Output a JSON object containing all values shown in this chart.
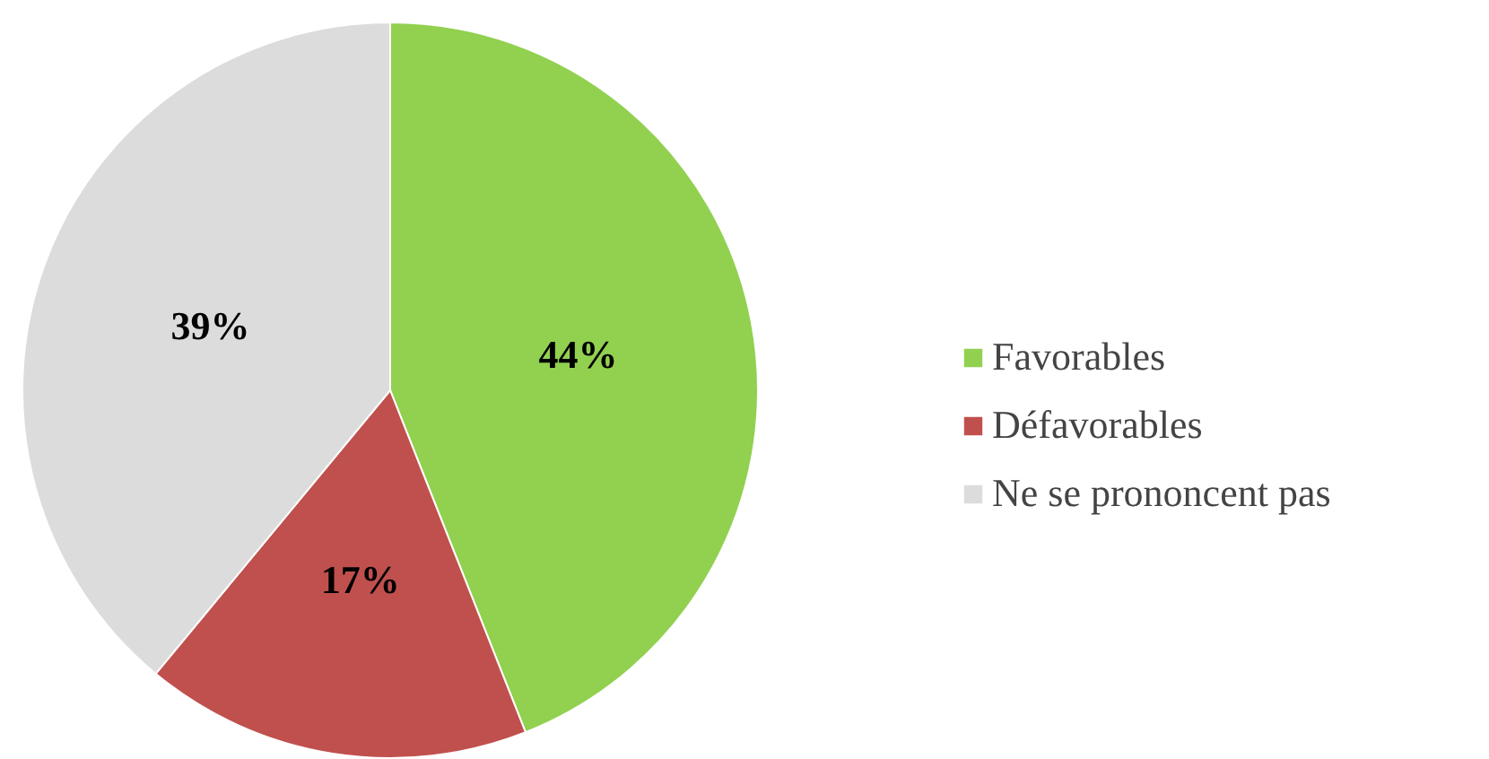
{
  "chart_data": {
    "type": "pie",
    "categories": [
      "Favorables",
      "Défavorables",
      "Ne se prononcent pas"
    ],
    "values": [
      44,
      17,
      39
    ],
    "colors": [
      "#92d050",
      "#c0504d",
      "#dcdcdc"
    ],
    "value_labels": [
      "44%",
      "17%",
      "39%"
    ],
    "legend": "right"
  }
}
